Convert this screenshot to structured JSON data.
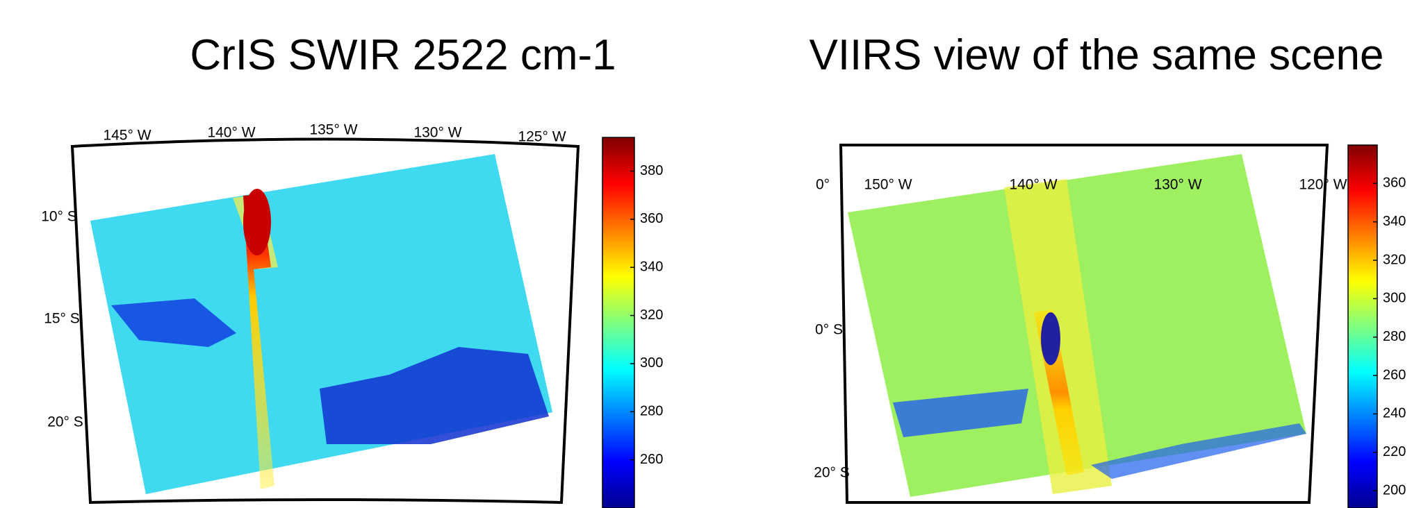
{
  "panels": [
    {
      "title": "CrIS SWIR 2522 cm-1",
      "lon_labels": [
        "145° W",
        "140° W",
        "135° W",
        "130° W",
        "125° W"
      ],
      "lat_labels": [
        "10° S",
        "15° S",
        "20° S"
      ],
      "colorbar": {
        "lim": [
          240,
          394
        ],
        "ticks": [
          260,
          280,
          300,
          320,
          340,
          360,
          380
        ]
      }
    },
    {
      "title": "VIIRS view of the same scene",
      "lon_labels": [
        "150° W",
        "140° W",
        "130° W",
        "120° W"
      ],
      "lat_labels": [
        "0°",
        "0° S",
        "20° S"
      ],
      "colorbar": {
        "lim": [
          191,
          380
        ],
        "ticks": [
          200,
          220,
          240,
          260,
          280,
          300,
          320,
          340,
          360
        ]
      }
    }
  ]
}
